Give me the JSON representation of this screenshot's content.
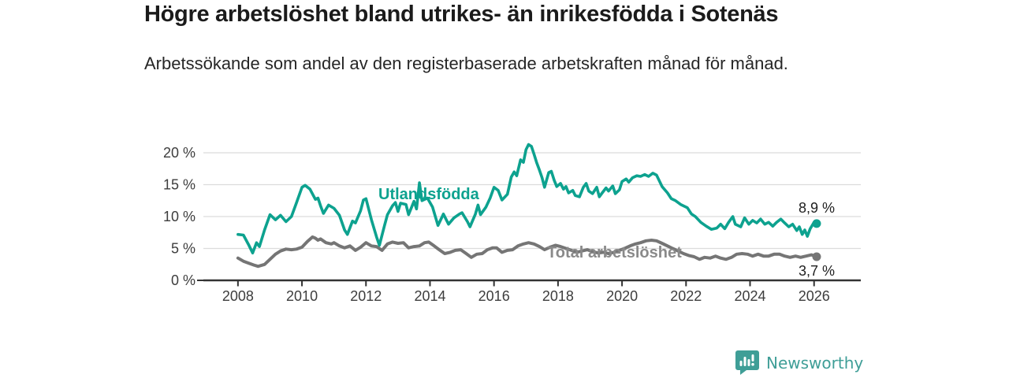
{
  "header": {
    "title": "Högre arbetslöshet bland utrikes- än inrikesfödda i Sotenäs",
    "subtitle": "Arbetssökande som andel av den registerbaserade arbetskraften månad för månad."
  },
  "chart_data": {
    "type": "line",
    "title": "Högre arbetslöshet bland utrikes- än inrikesfödda i Sotenäs",
    "subtitle": "Arbetssökande som andel av den registerbaserade arbetskraften månad för månad.",
    "unit": "%",
    "grid": true,
    "legend_position": "inline-labels",
    "style": {
      "grid_color": "#dcdcdc",
      "axis_color": "#333333",
      "tick_text_color": "#3d3d3d",
      "end_label_color": "#1f1f1f"
    },
    "x_axis": {
      "range": [
        2006.92,
        2027.46
      ],
      "ticks": [
        {
          "v": 2008,
          "label": "2008"
        },
        {
          "v": 2010,
          "label": "2010"
        },
        {
          "v": 2012,
          "label": "2012"
        },
        {
          "v": 2014,
          "label": "2014"
        },
        {
          "v": 2016,
          "label": "2016"
        },
        {
          "v": 2018,
          "label": "2018"
        },
        {
          "v": 2020,
          "label": "2020"
        },
        {
          "v": 2022,
          "label": "2022"
        },
        {
          "v": 2024,
          "label": "2024"
        },
        {
          "v": 2026,
          "label": "2026"
        }
      ]
    },
    "y_axis": {
      "range": [
        0,
        24.2
      ],
      "ticks": [
        {
          "v": 0,
          "label": "0 %"
        },
        {
          "v": 5,
          "label": "5 %"
        },
        {
          "v": 10,
          "label": "10 %"
        },
        {
          "v": 15,
          "label": "15 %"
        },
        {
          "v": 20,
          "label": "20 %"
        }
      ]
    },
    "series": [
      {
        "name": "Utlandsfödda",
        "color": "#0da28f",
        "label_color": "#0da28f",
        "line_width": 3.6,
        "end_label": "8,9 %",
        "end_value": 8.9,
        "points": [
          [
            2008.0,
            7.2
          ],
          [
            2008.17,
            7.1
          ],
          [
            2008.33,
            5.6
          ],
          [
            2008.46,
            4.3
          ],
          [
            2008.58,
            5.9
          ],
          [
            2008.67,
            5.3
          ],
          [
            2008.83,
            7.9
          ],
          [
            2009.0,
            10.3
          ],
          [
            2009.17,
            9.5
          ],
          [
            2009.33,
            10.2
          ],
          [
            2009.5,
            9.2
          ],
          [
            2009.67,
            10.0
          ],
          [
            2009.83,
            12.2
          ],
          [
            2010.0,
            14.6
          ],
          [
            2010.1,
            14.9
          ],
          [
            2010.25,
            14.3
          ],
          [
            2010.42,
            12.7
          ],
          [
            2010.5,
            12.9
          ],
          [
            2010.58,
            11.7
          ],
          [
            2010.67,
            10.5
          ],
          [
            2010.83,
            11.8
          ],
          [
            2011.0,
            11.3
          ],
          [
            2011.17,
            10.2
          ],
          [
            2011.33,
            7.9
          ],
          [
            2011.42,
            7.2
          ],
          [
            2011.58,
            9.3
          ],
          [
            2011.67,
            9.0
          ],
          [
            2011.83,
            10.9
          ],
          [
            2011.92,
            12.6
          ],
          [
            2012.0,
            12.8
          ],
          [
            2012.17,
            9.5
          ],
          [
            2012.33,
            6.8
          ],
          [
            2012.42,
            5.5
          ],
          [
            2012.58,
            8.6
          ],
          [
            2012.67,
            10.3
          ],
          [
            2012.83,
            11.7
          ],
          [
            2012.92,
            12.2
          ],
          [
            2013.0,
            10.8
          ],
          [
            2013.08,
            12.1
          ],
          [
            2013.25,
            11.9
          ],
          [
            2013.33,
            10.3
          ],
          [
            2013.5,
            12.4
          ],
          [
            2013.58,
            11.2
          ],
          [
            2013.67,
            15.3
          ],
          [
            2013.75,
            12.5
          ],
          [
            2013.92,
            12.9
          ],
          [
            2014.08,
            11.5
          ],
          [
            2014.25,
            8.6
          ],
          [
            2014.42,
            10.4
          ],
          [
            2014.58,
            8.8
          ],
          [
            2014.75,
            9.8
          ],
          [
            2014.92,
            10.4
          ],
          [
            2015.0,
            10.6
          ],
          [
            2015.17,
            9.2
          ],
          [
            2015.25,
            8.4
          ],
          [
            2015.42,
            10.4
          ],
          [
            2015.5,
            11.8
          ],
          [
            2015.58,
            10.3
          ],
          [
            2015.75,
            11.5
          ],
          [
            2015.88,
            12.9
          ],
          [
            2016.0,
            14.6
          ],
          [
            2016.13,
            14.1
          ],
          [
            2016.25,
            12.6
          ],
          [
            2016.42,
            13.5
          ],
          [
            2016.54,
            16.2
          ],
          [
            2016.63,
            17.0
          ],
          [
            2016.71,
            16.4
          ],
          [
            2016.83,
            18.9
          ],
          [
            2016.92,
            18.5
          ],
          [
            2017.0,
            20.5
          ],
          [
            2017.08,
            21.3
          ],
          [
            2017.17,
            21.0
          ],
          [
            2017.25,
            19.8
          ],
          [
            2017.33,
            18.5
          ],
          [
            2017.42,
            17.3
          ],
          [
            2017.5,
            16.1
          ],
          [
            2017.58,
            14.6
          ],
          [
            2017.71,
            16.9
          ],
          [
            2017.79,
            17.1
          ],
          [
            2017.88,
            15.7
          ],
          [
            2017.96,
            14.7
          ],
          [
            2018.08,
            15.2
          ],
          [
            2018.17,
            14.3
          ],
          [
            2018.25,
            14.7
          ],
          [
            2018.33,
            13.7
          ],
          [
            2018.46,
            14.1
          ],
          [
            2018.54,
            13.3
          ],
          [
            2018.67,
            13.1
          ],
          [
            2018.79,
            14.6
          ],
          [
            2018.88,
            15.2
          ],
          [
            2018.96,
            14.0
          ],
          [
            2019.08,
            13.6
          ],
          [
            2019.21,
            14.6
          ],
          [
            2019.29,
            13.1
          ],
          [
            2019.38,
            13.7
          ],
          [
            2019.5,
            14.5
          ],
          [
            2019.58,
            14.0
          ],
          [
            2019.71,
            14.8
          ],
          [
            2019.79,
            13.6
          ],
          [
            2019.92,
            14.2
          ],
          [
            2020.0,
            15.5
          ],
          [
            2020.13,
            15.9
          ],
          [
            2020.21,
            15.4
          ],
          [
            2020.33,
            16.1
          ],
          [
            2020.46,
            16.4
          ],
          [
            2020.58,
            16.3
          ],
          [
            2020.71,
            16.6
          ],
          [
            2020.83,
            16.3
          ],
          [
            2020.96,
            16.8
          ],
          [
            2021.08,
            16.5
          ],
          [
            2021.25,
            14.7
          ],
          [
            2021.42,
            13.7
          ],
          [
            2021.54,
            12.8
          ],
          [
            2021.67,
            12.5
          ],
          [
            2021.83,
            11.9
          ],
          [
            2022.04,
            11.4
          ],
          [
            2022.17,
            10.4
          ],
          [
            2022.29,
            10.0
          ],
          [
            2022.46,
            9.1
          ],
          [
            2022.63,
            8.5
          ],
          [
            2022.79,
            8.0
          ],
          [
            2022.96,
            8.2
          ],
          [
            2023.08,
            8.8
          ],
          [
            2023.21,
            8.1
          ],
          [
            2023.33,
            9.1
          ],
          [
            2023.46,
            10.0
          ],
          [
            2023.54,
            8.8
          ],
          [
            2023.71,
            8.4
          ],
          [
            2023.83,
            9.8
          ],
          [
            2023.96,
            8.8
          ],
          [
            2024.08,
            9.4
          ],
          [
            2024.21,
            9.0
          ],
          [
            2024.33,
            9.6
          ],
          [
            2024.46,
            8.8
          ],
          [
            2024.58,
            9.1
          ],
          [
            2024.71,
            8.5
          ],
          [
            2024.83,
            9.1
          ],
          [
            2024.96,
            9.6
          ],
          [
            2025.08,
            9.0
          ],
          [
            2025.21,
            8.4
          ],
          [
            2025.33,
            8.8
          ],
          [
            2025.46,
            7.8
          ],
          [
            2025.54,
            8.4
          ],
          [
            2025.63,
            7.2
          ],
          [
            2025.71,
            7.9
          ],
          [
            2025.79,
            6.9
          ],
          [
            2025.88,
            8.1
          ],
          [
            2026.0,
            9.1
          ],
          [
            2026.08,
            8.9
          ]
        ]
      },
      {
        "name": "Total arbetslöshet",
        "color": "#757575",
        "label_color": "#8a8a8a",
        "line_width": 4,
        "end_label": "3,7 %",
        "end_value": 3.7,
        "points": [
          [
            2008.0,
            3.5
          ],
          [
            2008.17,
            3.0
          ],
          [
            2008.33,
            2.7
          ],
          [
            2008.5,
            2.4
          ],
          [
            2008.63,
            2.2
          ],
          [
            2008.83,
            2.5
          ],
          [
            2009.0,
            3.3
          ],
          [
            2009.17,
            4.1
          ],
          [
            2009.33,
            4.6
          ],
          [
            2009.5,
            4.9
          ],
          [
            2009.67,
            4.8
          ],
          [
            2009.83,
            4.9
          ],
          [
            2010.0,
            5.2
          ],
          [
            2010.17,
            6.1
          ],
          [
            2010.33,
            6.8
          ],
          [
            2010.42,
            6.6
          ],
          [
            2010.5,
            6.3
          ],
          [
            2010.58,
            6.5
          ],
          [
            2010.75,
            5.9
          ],
          [
            2010.92,
            5.7
          ],
          [
            2011.0,
            5.9
          ],
          [
            2011.17,
            5.4
          ],
          [
            2011.33,
            5.1
          ],
          [
            2011.5,
            5.4
          ],
          [
            2011.67,
            4.7
          ],
          [
            2011.83,
            5.2
          ],
          [
            2012.0,
            5.9
          ],
          [
            2012.17,
            5.4
          ],
          [
            2012.33,
            5.3
          ],
          [
            2012.5,
            4.7
          ],
          [
            2012.67,
            5.7
          ],
          [
            2012.83,
            6.0
          ],
          [
            2013.0,
            5.8
          ],
          [
            2013.17,
            5.9
          ],
          [
            2013.33,
            5.1
          ],
          [
            2013.5,
            5.3
          ],
          [
            2013.67,
            5.4
          ],
          [
            2013.83,
            5.9
          ],
          [
            2013.96,
            6.0
          ],
          [
            2014.13,
            5.4
          ],
          [
            2014.29,
            4.8
          ],
          [
            2014.46,
            4.2
          ],
          [
            2014.63,
            4.4
          ],
          [
            2014.79,
            4.7
          ],
          [
            2014.96,
            4.8
          ],
          [
            2015.13,
            4.2
          ],
          [
            2015.29,
            3.6
          ],
          [
            2015.46,
            4.1
          ],
          [
            2015.63,
            4.2
          ],
          [
            2015.79,
            4.8
          ],
          [
            2015.96,
            5.1
          ],
          [
            2016.08,
            5.1
          ],
          [
            2016.25,
            4.4
          ],
          [
            2016.42,
            4.7
          ],
          [
            2016.58,
            4.8
          ],
          [
            2016.75,
            5.4
          ],
          [
            2016.92,
            5.7
          ],
          [
            2017.08,
            5.9
          ],
          [
            2017.25,
            5.7
          ],
          [
            2017.42,
            5.3
          ],
          [
            2017.58,
            4.8
          ],
          [
            2017.75,
            5.2
          ],
          [
            2017.92,
            5.5
          ],
          [
            2018.08,
            5.3
          ],
          [
            2018.25,
            5.0
          ],
          [
            2018.42,
            4.7
          ],
          [
            2018.58,
            4.4
          ],
          [
            2018.75,
            4.6
          ],
          [
            2018.92,
            4.8
          ],
          [
            2019.08,
            4.5
          ],
          [
            2019.25,
            4.3
          ],
          [
            2019.42,
            4.4
          ],
          [
            2019.58,
            4.2
          ],
          [
            2019.75,
            4.4
          ],
          [
            2019.92,
            4.7
          ],
          [
            2020.08,
            5.0
          ],
          [
            2020.25,
            5.4
          ],
          [
            2020.42,
            5.7
          ],
          [
            2020.58,
            5.9
          ],
          [
            2020.75,
            6.2
          ],
          [
            2020.92,
            6.3
          ],
          [
            2021.08,
            6.2
          ],
          [
            2021.25,
            5.8
          ],
          [
            2021.42,
            5.4
          ],
          [
            2021.58,
            5.0
          ],
          [
            2021.75,
            4.6
          ],
          [
            2021.92,
            4.2
          ],
          [
            2022.08,
            3.9
          ],
          [
            2022.25,
            3.7
          ],
          [
            2022.42,
            3.3
          ],
          [
            2022.58,
            3.6
          ],
          [
            2022.75,
            3.5
          ],
          [
            2022.92,
            3.8
          ],
          [
            2023.08,
            3.5
          ],
          [
            2023.25,
            3.3
          ],
          [
            2023.42,
            3.6
          ],
          [
            2023.58,
            4.1
          ],
          [
            2023.75,
            4.2
          ],
          [
            2023.92,
            4.1
          ],
          [
            2024.08,
            3.8
          ],
          [
            2024.25,
            4.1
          ],
          [
            2024.42,
            3.8
          ],
          [
            2024.58,
            3.8
          ],
          [
            2024.75,
            4.1
          ],
          [
            2024.92,
            4.1
          ],
          [
            2025.08,
            3.8
          ],
          [
            2025.25,
            3.6
          ],
          [
            2025.42,
            3.8
          ],
          [
            2025.58,
            3.6
          ],
          [
            2025.75,
            3.8
          ],
          [
            2025.92,
            4.0
          ],
          [
            2026.08,
            3.7
          ]
        ]
      }
    ]
  },
  "footer": {
    "brand": "Newsworthy",
    "brand_color": "#3f9e97",
    "logo_icon": "bar-chart-speech-bubble-icon"
  }
}
